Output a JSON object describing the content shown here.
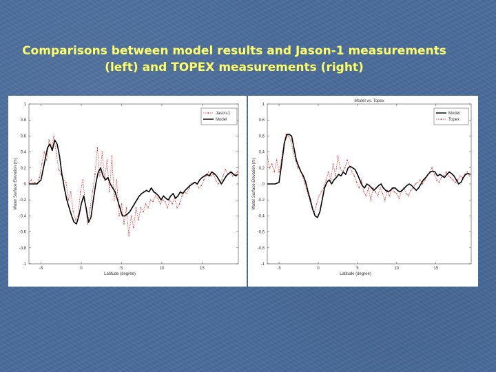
{
  "slide": {
    "title_line1": "Comparisons between model results and Jason-1 measurements",
    "title_line2": "(left) and TOPEX measurements (right)"
  },
  "chart_data": [
    {
      "type": "line",
      "title": "",
      "xlabel": "Latitude (degree)",
      "ylabel": "Water Surface Elevation (m)",
      "xlim": [
        -6.5,
        19.5
      ],
      "ylim": [
        -1,
        1
      ],
      "xticks": [
        "-5",
        "0",
        "5",
        "10",
        "15"
      ],
      "yticks": [
        "1",
        "0.8",
        "0.6",
        "0.4",
        "0.2",
        "0",
        "-0.2",
        "-0.4",
        "-0.6",
        "-0.8",
        "-1"
      ],
      "legend_position": "top-right",
      "series": [
        {
          "name": "Jason-1",
          "color": "#e03030",
          "style": "dotted-markers",
          "x": [
            -6.5,
            -6.2,
            -6.0,
            -5.8,
            -5.5,
            -5.2,
            -4.9,
            -4.6,
            -4.3,
            -4.0,
            -3.7,
            -3.4,
            -3.1,
            -2.8,
            -2.5,
            -2.2,
            -1.9,
            -1.6,
            -1.3,
            -1.0,
            -0.7,
            -0.4,
            -0.1,
            0.2,
            0.5,
            0.8,
            1.1,
            1.4,
            1.7,
            2.0,
            2.3,
            2.6,
            2.9,
            3.2,
            3.5,
            3.8,
            4.1,
            4.4,
            4.7,
            5.0,
            5.3,
            5.6,
            5.9,
            6.2,
            6.5,
            6.8,
            7.1,
            7.4,
            7.7,
            8.0,
            8.3,
            8.6,
            8.9,
            9.2,
            9.5,
            9.8,
            10.1,
            10.4,
            10.7,
            11.0,
            11.3,
            11.6,
            11.9,
            12.2,
            12.5,
            12.8,
            13.1,
            13.4,
            13.7,
            14.0,
            14.3,
            14.6,
            14.9,
            15.2,
            15.5,
            15.8,
            16.1,
            16.4,
            16.7,
            17.0,
            17.3,
            17.6,
            17.9,
            18.2,
            18.5,
            18.8,
            19.1,
            19.4
          ],
          "y": [
            0.02,
            0.05,
            0.0,
            0.02,
            0.0,
            0.08,
            0.25,
            0.4,
            0.3,
            0.55,
            0.45,
            0.6,
            0.38,
            0.18,
            0.12,
            0.05,
            0.02,
            -0.2,
            -0.1,
            -0.35,
            -0.45,
            -0.4,
            -0.1,
            0.05,
            -0.25,
            -0.5,
            -0.3,
            -0.1,
            0.12,
            0.45,
            0.1,
            0.4,
            0.05,
            0.3,
            -0.1,
            0.35,
            -0.2,
            0.05,
            -0.4,
            -0.25,
            -0.5,
            -0.3,
            -0.65,
            -0.4,
            -0.55,
            -0.3,
            -0.45,
            -0.3,
            -0.35,
            -0.25,
            -0.3,
            -0.2,
            -0.22,
            -0.15,
            -0.18,
            -0.25,
            -0.2,
            -0.22,
            -0.3,
            -0.2,
            -0.25,
            -0.18,
            -0.3,
            -0.25,
            -0.15,
            -0.1,
            -0.12,
            -0.05,
            0.0,
            0.02,
            0.0,
            -0.05,
            -0.02,
            0.05,
            0.1,
            0.15,
            0.1,
            0.12,
            0.05,
            0.0,
            0.02,
            0.1,
            0.18,
            0.12,
            0.15,
            0.1,
            0.12,
            0.15
          ]
        },
        {
          "name": "Model",
          "color": "#000000",
          "style": "solid",
          "x": [
            -6.5,
            -6.0,
            -5.5,
            -5.0,
            -4.5,
            -4.2,
            -3.9,
            -3.6,
            -3.3,
            -3.0,
            -2.7,
            -2.4,
            -2.1,
            -1.8,
            -1.5,
            -1.2,
            -0.9,
            -0.6,
            -0.3,
            0.0,
            0.3,
            0.6,
            0.9,
            1.2,
            1.5,
            1.8,
            2.1,
            2.4,
            2.7,
            3.0,
            3.3,
            3.6,
            3.9,
            4.2,
            4.5,
            4.8,
            5.1,
            5.4,
            5.7,
            6.0,
            6.3,
            6.6,
            6.9,
            7.2,
            7.5,
            7.8,
            8.1,
            8.4,
            8.7,
            9.0,
            9.3,
            9.6,
            9.9,
            10.2,
            10.5,
            10.8,
            11.1,
            11.4,
            11.7,
            12.0,
            12.3,
            12.6,
            12.9,
            13.2,
            13.5,
            13.8,
            14.1,
            14.4,
            14.7,
            15.0,
            15.3,
            15.6,
            15.9,
            16.2,
            16.5,
            16.8,
            17.1,
            17.4,
            17.7,
            18.0,
            18.3,
            18.6,
            18.9,
            19.2,
            19.4
          ],
          "y": [
            0.0,
            0.0,
            0.0,
            0.05,
            0.3,
            0.45,
            0.5,
            0.42,
            0.55,
            0.5,
            0.35,
            0.12,
            -0.05,
            -0.2,
            -0.3,
            -0.4,
            -0.48,
            -0.5,
            -0.4,
            -0.25,
            -0.15,
            -0.3,
            -0.48,
            -0.42,
            -0.2,
            0.0,
            0.15,
            0.2,
            0.1,
            0.05,
            0.08,
            0.0,
            -0.05,
            -0.1,
            -0.2,
            -0.3,
            -0.4,
            -0.4,
            -0.38,
            -0.35,
            -0.3,
            -0.25,
            -0.2,
            -0.15,
            -0.12,
            -0.1,
            -0.08,
            -0.1,
            -0.05,
            -0.1,
            -0.12,
            -0.15,
            -0.2,
            -0.15,
            -0.18,
            -0.2,
            -0.15,
            -0.12,
            -0.18,
            -0.15,
            -0.1,
            -0.12,
            -0.08,
            -0.05,
            -0.02,
            0.0,
            0.02,
            0.0,
            0.05,
            0.08,
            0.1,
            0.12,
            0.1,
            0.15,
            0.13,
            0.1,
            0.05,
            0.0,
            0.05,
            0.1,
            0.13,
            0.15,
            0.12,
            0.1,
            0.12
          ]
        }
      ]
    },
    {
      "type": "line",
      "title": "Model vs. Topex",
      "xlabel": "Latitude (degree)",
      "ylabel": "Water Surface Elevation (m)",
      "xlim": [
        -6.5,
        19.5
      ],
      "ylim": [
        -1,
        1
      ],
      "xticks": [
        "-5",
        "0",
        "5",
        "10",
        "15"
      ],
      "yticks": [
        "1",
        "0.8",
        "0.6",
        "0.4",
        "0.2",
        "0",
        "-0.2",
        "-0.4",
        "-0.6",
        "-0.8",
        "-1"
      ],
      "legend_position": "top-right",
      "series": [
        {
          "name": "Model",
          "color": "#000000",
          "style": "solid",
          "x": [
            -6.5,
            -6.0,
            -5.5,
            -5.0,
            -4.6,
            -4.3,
            -4.0,
            -3.7,
            -3.4,
            -3.1,
            -2.8,
            -2.5,
            -2.2,
            -1.9,
            -1.6,
            -1.3,
            -1.0,
            -0.7,
            -0.4,
            -0.1,
            0.2,
            0.5,
            0.8,
            1.1,
            1.4,
            1.7,
            2.0,
            2.3,
            2.6,
            2.9,
            3.2,
            3.5,
            3.8,
            4.1,
            4.4,
            4.7,
            5.0,
            5.3,
            5.6,
            5.9,
            6.2,
            6.5,
            6.8,
            7.1,
            7.4,
            7.7,
            8.0,
            8.3,
            8.6,
            8.9,
            9.2,
            9.5,
            9.8,
            10.1,
            10.4,
            10.7,
            11.0,
            11.3,
            11.6,
            11.9,
            12.2,
            12.5,
            12.8,
            13.1,
            13.4,
            13.7,
            14.0,
            14.3,
            14.6,
            14.9,
            15.2,
            15.5,
            15.8,
            16.1,
            16.4,
            16.7,
            17.0,
            17.3,
            17.6,
            17.9,
            18.2,
            18.5,
            18.8,
            19.1,
            19.4
          ],
          "y": [
            0.0,
            0.0,
            0.0,
            0.02,
            0.3,
            0.52,
            0.62,
            0.62,
            0.6,
            0.45,
            0.3,
            0.22,
            0.15,
            0.1,
            0.02,
            -0.1,
            -0.2,
            -0.32,
            -0.4,
            -0.42,
            -0.35,
            -0.2,
            -0.05,
            0.02,
            0.05,
            0.0,
            0.05,
            0.08,
            0.12,
            0.1,
            0.15,
            0.12,
            0.2,
            0.22,
            0.2,
            0.18,
            0.12,
            0.05,
            -0.02,
            -0.05,
            0.0,
            -0.02,
            -0.05,
            -0.08,
            -0.05,
            -0.02,
            0.0,
            -0.05,
            -0.08,
            -0.1,
            -0.08,
            -0.05,
            -0.05,
            -0.08,
            -0.1,
            -0.08,
            -0.05,
            -0.02,
            0.0,
            -0.02,
            -0.05,
            -0.08,
            -0.05,
            0.0,
            0.05,
            0.08,
            0.12,
            0.15,
            0.16,
            0.15,
            0.1,
            0.12,
            0.1,
            0.08,
            0.12,
            0.15,
            0.13,
            0.1,
            0.05,
            0.0,
            0.02,
            0.08,
            0.12,
            0.13,
            0.12
          ]
        },
        {
          "name": "Topex",
          "color": "#e03030",
          "style": "dotted-markers",
          "x": [
            -6.5,
            -6.2,
            -5.9,
            -5.6,
            -5.3,
            -5.0,
            -4.7,
            -4.4,
            -4.1,
            -3.8,
            -3.5,
            -3.2,
            -2.9,
            -2.6,
            -2.3,
            -2.0,
            -1.7,
            -1.4,
            -1.1,
            -0.8,
            -0.5,
            -0.2,
            0.1,
            0.4,
            0.7,
            1.0,
            1.3,
            1.6,
            1.9,
            2.2,
            2.5,
            2.8,
            3.1,
            3.4,
            3.7,
            4.0,
            4.3,
            4.6,
            4.9,
            5.2,
            5.5,
            5.8,
            6.1,
            6.4,
            6.7,
            7.0,
            7.3,
            7.6,
            7.9,
            8.2,
            8.5,
            8.8,
            9.1,
            9.4,
            9.7,
            10.0,
            10.3,
            10.6,
            10.9,
            11.2,
            11.5,
            11.8,
            12.1,
            12.4,
            12.7,
            13.0,
            13.3,
            13.6,
            13.9,
            14.2,
            14.5,
            14.8,
            15.1,
            15.4,
            15.7,
            16.0,
            16.3,
            16.6,
            16.9,
            17.2,
            17.5,
            17.8,
            18.1,
            18.4,
            18.7,
            19.0,
            19.3
          ],
          "y": [
            0.35,
            0.2,
            0.25,
            0.15,
            0.3,
            0.15,
            0.3,
            0.5,
            0.62,
            0.6,
            0.55,
            0.4,
            0.3,
            0.2,
            0.18,
            0.1,
            0.0,
            -0.1,
            -0.2,
            -0.3,
            -0.35,
            -0.25,
            -0.15,
            -0.1,
            -0.05,
            0.05,
            0.15,
            0.05,
            0.25,
            0.1,
            0.35,
            0.2,
            0.15,
            0.2,
            0.3,
            0.22,
            0.15,
            0.1,
            0.02,
            -0.05,
            0.05,
            -0.1,
            -0.15,
            -0.05,
            -0.2,
            -0.05,
            -0.1,
            -0.15,
            -0.05,
            -0.12,
            -0.2,
            -0.08,
            -0.15,
            -0.05,
            -0.1,
            -0.12,
            -0.18,
            -0.1,
            -0.05,
            -0.12,
            -0.15,
            -0.08,
            -0.05,
            0.0,
            0.02,
            0.05,
            0.0,
            0.05,
            0.1,
            0.15,
            0.2,
            0.12,
            0.05,
            0.02,
            0.08,
            0.1,
            0.15,
            0.1,
            0.08,
            0.05,
            0.02,
            0.05,
            0.1,
            0.08,
            0.12,
            0.15,
            0.1
          ]
        }
      ]
    }
  ]
}
